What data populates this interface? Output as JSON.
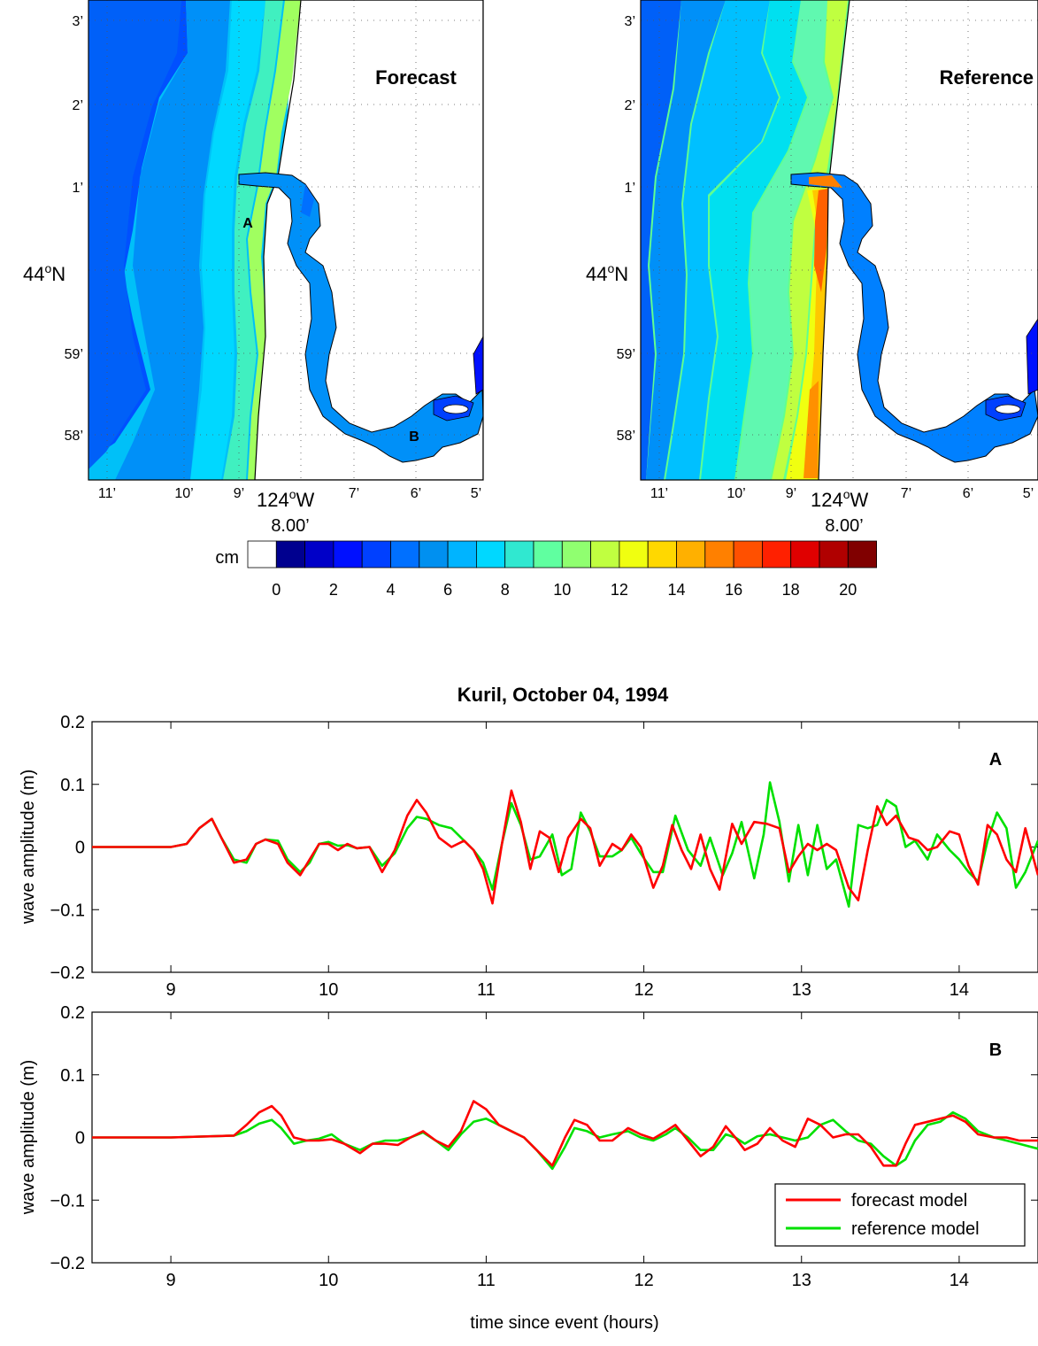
{
  "maps": {
    "forecast": {
      "label": "Forecast",
      "x_ticks": [
        "11’",
        "10’",
        "9’",
        "7’",
        "6’",
        "5’"
      ],
      "y_ticks": [
        "3’",
        "2’",
        "1’",
        "59’",
        "58’"
      ],
      "lat_main": "44",
      "lat_unit": "N",
      "lon_main": "124",
      "lon_unit": "W",
      "lon_sub": "8.00’",
      "point_a": "A",
      "point_b": "B"
    },
    "reference": {
      "label": "Reference",
      "x_ticks": [
        "11’",
        "10’",
        "9’",
        "7’",
        "6’",
        "5’"
      ],
      "y_ticks": [
        "3’",
        "2’",
        "1’",
        "59’",
        "58’"
      ],
      "lat_main": "44",
      "lat_unit": "N",
      "lon_main": "124",
      "lon_unit": "W",
      "lon_sub": "8.00’"
    },
    "degree_symbol": "o"
  },
  "colorbar": {
    "unit": "cm",
    "ticks": [
      "0",
      "2",
      "4",
      "6",
      "8",
      "10",
      "12",
      "14",
      "16",
      "18",
      "20"
    ],
    "colors": [
      "#ffffff",
      "#00008f",
      "#0000c8",
      "#0010ff",
      "#0040ff",
      "#0070ff",
      "#0090f0",
      "#00b4ff",
      "#00d8ff",
      "#30e8d0",
      "#60ffa0",
      "#90ff70",
      "#c0ff40",
      "#f0ff10",
      "#ffd800",
      "#ffb000",
      "#ff8000",
      "#ff5000",
      "#ff2000",
      "#e00000",
      "#b00000",
      "#800000"
    ]
  },
  "chart_data": [
    {
      "type": "line",
      "title": "Kuril, October 04, 1994",
      "panel_label": "A",
      "xlabel": "",
      "ylabel": "wave amplitude (m)",
      "xlim": [
        8.5,
        14.5
      ],
      "ylim": [
        -0.2,
        0.2
      ],
      "x_ticks": [
        "9",
        "10",
        "11",
        "12",
        "13",
        "14"
      ],
      "y_ticks": [
        "0.2",
        "0.1",
        "0",
        "−0.1",
        "−0.2"
      ],
      "series": [
        {
          "name": "forecast model",
          "color": "#ff0000",
          "x": [
            8.5,
            9.0,
            9.1,
            9.18,
            9.26,
            9.32,
            9.4,
            9.48,
            9.54,
            9.6,
            9.68,
            9.74,
            9.82,
            9.88,
            9.94,
            10.0,
            10.06,
            10.12,
            10.18,
            10.26,
            10.34,
            10.42,
            10.5,
            10.56,
            10.62,
            10.7,
            10.78,
            10.86,
            10.92,
            10.98,
            11.04,
            11.1,
            11.16,
            11.22,
            11.28,
            11.34,
            11.4,
            11.46,
            11.52,
            11.6,
            11.66,
            11.72,
            11.8,
            11.86,
            11.92,
            11.98,
            12.06,
            12.12,
            12.18,
            12.24,
            12.3,
            12.36,
            12.42,
            12.48,
            12.56,
            12.62,
            12.7,
            12.78,
            12.86,
            12.92,
            12.98,
            13.04,
            13.1,
            13.16,
            13.22,
            13.3,
            13.36,
            13.42,
            13.48,
            13.54,
            13.6,
            13.68,
            13.74,
            13.8,
            13.86,
            13.94,
            14.0,
            14.06,
            14.12,
            14.18,
            14.24,
            14.3,
            14.36,
            14.42,
            14.5
          ],
          "y": [
            0,
            0,
            0.005,
            0.03,
            0.045,
            0.015,
            -0.025,
            -0.02,
            0.005,
            0.012,
            0.005,
            -0.025,
            -0.045,
            -0.02,
            0.005,
            0.005,
            -0.005,
            0.005,
            -0.002,
            0.0,
            -0.04,
            -0.005,
            0.05,
            0.075,
            0.055,
            0.015,
            0.0,
            0.01,
            -0.005,
            -0.035,
            -0.09,
            0.005,
            0.09,
            0.04,
            -0.035,
            0.025,
            0.015,
            -0.04,
            0.015,
            0.045,
            0.03,
            -0.03,
            0.005,
            -0.005,
            0.02,
            0.0,
            -0.065,
            -0.03,
            0.035,
            -0.005,
            -0.035,
            0.02,
            -0.035,
            -0.068,
            0.037,
            0.005,
            0.04,
            0.037,
            0.03,
            -0.04,
            -0.015,
            0.005,
            -0.005,
            0.005,
            -0.005,
            -0.065,
            -0.085,
            -0.005,
            0.065,
            0.035,
            0.05,
            0.015,
            0.01,
            -0.005,
            0.0,
            0.025,
            0.02,
            -0.03,
            -0.06,
            0.035,
            0.02,
            -0.02,
            -0.04,
            0.03,
            -0.045
          ]
        },
        {
          "name": "reference model",
          "color": "#00e000",
          "x": [
            8.5,
            9.0,
            9.1,
            9.18,
            9.26,
            9.32,
            9.4,
            9.48,
            9.54,
            9.6,
            9.68,
            9.74,
            9.82,
            9.88,
            9.94,
            10.0,
            10.06,
            10.12,
            10.18,
            10.26,
            10.34,
            10.42,
            10.5,
            10.56,
            10.62,
            10.7,
            10.78,
            10.86,
            10.92,
            10.98,
            11.04,
            11.1,
            11.16,
            11.22,
            11.28,
            11.34,
            11.42,
            11.48,
            11.54,
            11.6,
            11.66,
            11.72,
            11.8,
            11.86,
            11.92,
            11.98,
            12.06,
            12.12,
            12.2,
            12.28,
            12.36,
            12.42,
            12.5,
            12.56,
            12.62,
            12.7,
            12.76,
            12.8,
            12.86,
            12.92,
            12.98,
            13.04,
            13.1,
            13.16,
            13.22,
            13.3,
            13.36,
            13.42,
            13.48,
            13.54,
            13.6,
            13.66,
            13.72,
            13.8,
            13.86,
            13.94,
            14.0,
            14.06,
            14.12,
            14.18,
            14.24,
            14.3,
            14.36,
            14.42,
            14.5
          ],
          "y": [
            0,
            0,
            0.005,
            0.03,
            0.045,
            0.015,
            -0.02,
            -0.025,
            0.005,
            0.012,
            0.01,
            -0.02,
            -0.04,
            -0.025,
            0.005,
            0.008,
            0.002,
            0.003,
            -0.002,
            0.0,
            -0.03,
            -0.01,
            0.03,
            0.048,
            0.045,
            0.035,
            0.03,
            0.01,
            -0.005,
            -0.025,
            -0.068,
            0.005,
            0.07,
            0.035,
            -0.02,
            -0.015,
            0.02,
            -0.045,
            -0.035,
            0.055,
            0.025,
            -0.015,
            -0.015,
            -0.005,
            0.015,
            -0.01,
            -0.04,
            -0.04,
            0.05,
            -0.005,
            -0.03,
            0.015,
            -0.045,
            -0.01,
            0.04,
            -0.05,
            0.02,
            0.103,
            0.04,
            -0.055,
            0.035,
            -0.045,
            0.035,
            -0.035,
            -0.02,
            -0.095,
            0.035,
            0.03,
            0.035,
            0.075,
            0.065,
            0.0,
            0.01,
            -0.02,
            0.02,
            -0.005,
            -0.02,
            -0.04,
            -0.055,
            0.01,
            0.055,
            0.03,
            -0.065,
            -0.04,
            0.01
          ]
        }
      ]
    },
    {
      "type": "line",
      "title": "",
      "panel_label": "B",
      "xlabel": "time since event (hours)",
      "ylabel": "wave amplitude (m)",
      "xlim": [
        8.5,
        14.5
      ],
      "ylim": [
        -0.2,
        0.2
      ],
      "x_ticks": [
        "9",
        "10",
        "11",
        "12",
        "13",
        "14"
      ],
      "y_ticks": [
        "0.2",
        "0.1",
        "0",
        "−0.1",
        "−0.2"
      ],
      "legend_position": "bottom-right",
      "series": [
        {
          "name": "forecast model",
          "color": "#ff0000",
          "x": [
            8.5,
            9.0,
            9.4,
            9.48,
            9.56,
            9.64,
            9.7,
            9.78,
            9.86,
            9.94,
            10.02,
            10.1,
            10.2,
            10.28,
            10.36,
            10.44,
            10.52,
            10.6,
            10.68,
            10.76,
            10.84,
            10.92,
            11.0,
            11.08,
            11.16,
            11.24,
            11.32,
            11.42,
            11.5,
            11.56,
            11.64,
            11.72,
            11.8,
            11.9,
            11.98,
            12.06,
            12.14,
            12.2,
            12.28,
            12.36,
            12.44,
            12.52,
            12.58,
            12.64,
            12.72,
            12.8,
            12.88,
            12.96,
            13.04,
            13.12,
            13.2,
            13.28,
            13.36,
            13.44,
            13.52,
            13.6,
            13.66,
            13.72,
            13.8,
            13.88,
            13.96,
            14.04,
            14.12,
            14.22,
            14.3,
            14.38,
            14.5
          ],
          "y": [
            0,
            0,
            0.003,
            0.02,
            0.04,
            0.05,
            0.035,
            0.0,
            -0.005,
            -0.005,
            -0.003,
            -0.01,
            -0.025,
            -0.01,
            -0.01,
            -0.012,
            0.0,
            0.01,
            -0.005,
            -0.015,
            0.01,
            0.058,
            0.045,
            0.02,
            0.01,
            0.0,
            -0.02,
            -0.045,
            0.0,
            0.028,
            0.02,
            -0.005,
            -0.005,
            0.015,
            0.005,
            -0.002,
            0.01,
            0.02,
            -0.005,
            -0.03,
            -0.015,
            0.018,
            0.0,
            -0.02,
            -0.01,
            0.015,
            -0.005,
            -0.015,
            0.03,
            0.02,
            0.0,
            0.005,
            0.005,
            -0.015,
            -0.045,
            -0.045,
            -0.01,
            0.02,
            0.025,
            0.03,
            0.035,
            0.025,
            0.005,
            0.0,
            0.0,
            -0.005,
            -0.005
          ]
        },
        {
          "name": "reference model",
          "color": "#00e000",
          "x": [
            8.5,
            9.0,
            9.4,
            9.48,
            9.56,
            9.64,
            9.7,
            9.78,
            9.86,
            9.94,
            10.02,
            10.1,
            10.2,
            10.28,
            10.36,
            10.44,
            10.52,
            10.6,
            10.68,
            10.76,
            10.84,
            10.92,
            11.0,
            11.08,
            11.16,
            11.24,
            11.32,
            11.42,
            11.5,
            11.56,
            11.64,
            11.72,
            11.8,
            11.9,
            11.98,
            12.06,
            12.14,
            12.2,
            12.28,
            12.36,
            12.44,
            12.52,
            12.58,
            12.64,
            12.72,
            12.8,
            12.88,
            12.96,
            13.04,
            13.12,
            13.2,
            13.28,
            13.36,
            13.44,
            13.52,
            13.6,
            13.66,
            13.72,
            13.8,
            13.88,
            13.96,
            14.04,
            14.12,
            14.22,
            14.3,
            14.38,
            14.5
          ],
          "y": [
            0,
            0,
            0.003,
            0.01,
            0.022,
            0.028,
            0.015,
            -0.01,
            -0.005,
            -0.002,
            0.005,
            -0.01,
            -0.02,
            -0.01,
            -0.005,
            -0.005,
            0.0,
            0.008,
            -0.005,
            -0.02,
            0.005,
            0.025,
            0.03,
            0.02,
            0.01,
            0.0,
            -0.02,
            -0.05,
            -0.015,
            0.015,
            0.01,
            0.0,
            0.005,
            0.01,
            0.0,
            -0.005,
            0.005,
            0.015,
            0.0,
            -0.02,
            -0.02,
            0.005,
            0.0,
            -0.01,
            0.002,
            0.005,
            0.0,
            -0.005,
            0.0,
            0.02,
            0.028,
            0.01,
            -0.005,
            -0.01,
            -0.03,
            -0.045,
            -0.035,
            -0.005,
            0.02,
            0.025,
            0.04,
            0.03,
            0.01,
            0.0,
            -0.005,
            -0.01,
            -0.018
          ]
        }
      ]
    }
  ]
}
